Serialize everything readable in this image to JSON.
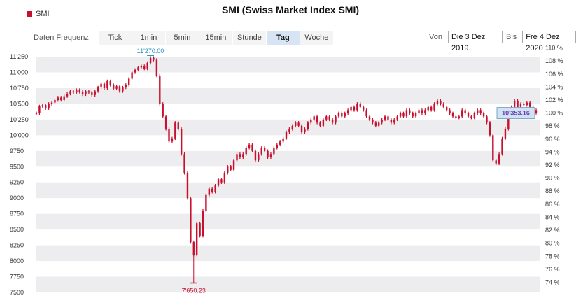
{
  "chart_data": {
    "type": "candlestick",
    "title": "SMI (Swiss Market Index SMI)",
    "legend": [
      {
        "name": "SMI",
        "color": "#c8102e"
      }
    ],
    "y_left_ticks": [
      "11'250",
      "11'000",
      "10'750",
      "10'500",
      "10'250",
      "10'000",
      "9750",
      "9500",
      "9250",
      "9000",
      "8750",
      "8500",
      "8250",
      "8000",
      "7750",
      "7500"
    ],
    "y_left_range": [
      7500,
      11350
    ],
    "y_right_ticks": [
      "110 %",
      "108 %",
      "106 %",
      "104 %",
      "102 %",
      "100 %",
      "98 %",
      "96 %",
      "94 %",
      "92 %",
      "90 %",
      "88 %",
      "86 %",
      "84 %",
      "82 %",
      "80 %",
      "78 %",
      "76 %",
      "74 %"
    ],
    "annotations": {
      "high": {
        "label": "11'270.00",
        "value": 11270,
        "color": "#2a8fc0"
      },
      "low": {
        "label": "7'650.23",
        "value": 7650.23,
        "color": "#c8102e"
      },
      "last": {
        "label": "10'353.16",
        "value": 10353.16,
        "color": "#6a3cb5"
      }
    },
    "grid": true,
    "series": [
      {
        "color": "#c8102e",
        "values": [
          10350,
          10460,
          10480,
          10430,
          10500,
          10520,
          10560,
          10600,
          10560,
          10620,
          10660,
          10700,
          10680,
          10720,
          10690,
          10650,
          10700,
          10680,
          10640,
          10700,
          10760,
          10820,
          10750,
          10860,
          10800,
          10740,
          10780,
          10700,
          10760,
          10800,
          10900,
          11000,
          11040,
          11080,
          11100,
          11060,
          11150,
          11230,
          11200,
          10950,
          10500,
          10300,
          10100,
          9900,
          9950,
          10200,
          10100,
          9700,
          9400,
          9000,
          8300,
          8100,
          8600,
          8400,
          8800,
          9050,
          9150,
          9100,
          9200,
          9300,
          9250,
          9400,
          9500,
          9450,
          9600,
          9700,
          9650,
          9700,
          9800,
          9850,
          9750,
          9600,
          9700,
          9800,
          9750,
          9650,
          9700,
          9800,
          9850,
          9900,
          9950,
          10050,
          10100,
          10150,
          10200,
          10150,
          10050,
          10100,
          10200,
          10250,
          10300,
          10200,
          10150,
          10250,
          10300,
          10250,
          10200,
          10300,
          10350,
          10300,
          10350,
          10400,
          10450,
          10400,
          10500,
          10450,
          10400,
          10300,
          10250,
          10200,
          10150,
          10200,
          10250,
          10300,
          10250,
          10200,
          10250,
          10300,
          10350,
          10300,
          10400,
          10350,
          10300,
          10350,
          10400,
          10350,
          10400,
          10450,
          10400,
          10500,
          10550,
          10500,
          10450,
          10400,
          10350,
          10300,
          10280,
          10300,
          10400,
          10350,
          10300,
          10280,
          10350,
          10400,
          10350,
          10300,
          10200,
          10000,
          9600,
          9550,
          9700,
          9950,
          10100,
          10300,
          10450,
          10550,
          10450,
          10500,
          10480,
          10520,
          10450,
          10400,
          10353.16
        ]
      }
    ]
  }
}
